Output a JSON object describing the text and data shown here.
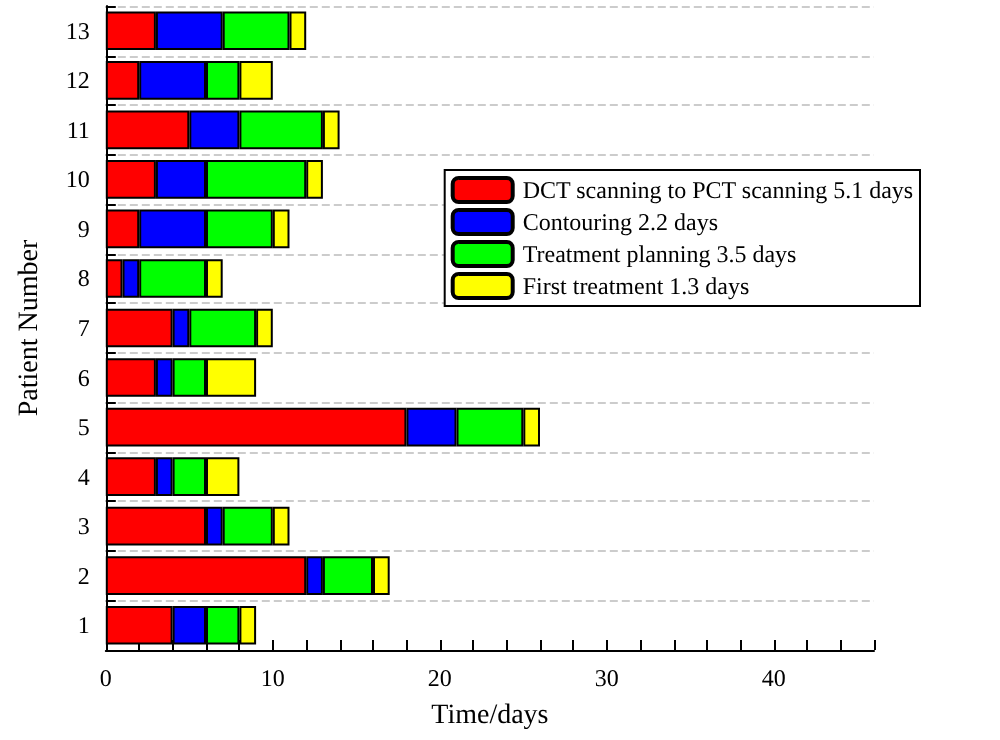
{
  "chart_data": {
    "type": "bar",
    "orientation": "horizontal",
    "stacked": true,
    "xlabel": "Time/days",
    "ylabel": "Patient Number",
    "categories": [
      "13",
      "12",
      "11",
      "10",
      "9",
      "8",
      "7",
      "6",
      "5",
      "4",
      "3",
      "2",
      "1"
    ],
    "series": [
      {
        "name": "DCT scanning to PCT scanning 5.1 days",
        "color": "#ff0000",
        "values": [
          3,
          2,
          5,
          3,
          2,
          1,
          4,
          3,
          18,
          3,
          6,
          12,
          4
        ]
      },
      {
        "name": "Contouring 2.2 days",
        "color": "#0000ff",
        "values": [
          4,
          4,
          3,
          3,
          4,
          1,
          1,
          1,
          3,
          1,
          1,
          1,
          2
        ]
      },
      {
        "name": "Treatment planning 3.5 days",
        "color": "#00ff00",
        "values": [
          4,
          2,
          5,
          6,
          4,
          4,
          4,
          2,
          4,
          2,
          3,
          3,
          2
        ]
      },
      {
        "name": "First treatment 1.3 days",
        "color": "#ffff00",
        "values": [
          1,
          2,
          1,
          1,
          1,
          1,
          1,
          3,
          1,
          2,
          1,
          1,
          1
        ]
      }
    ],
    "xlim": [
      0,
      46
    ],
    "xticks": [
      0,
      10,
      20,
      30,
      40
    ],
    "grid": "y",
    "legend": "right"
  }
}
